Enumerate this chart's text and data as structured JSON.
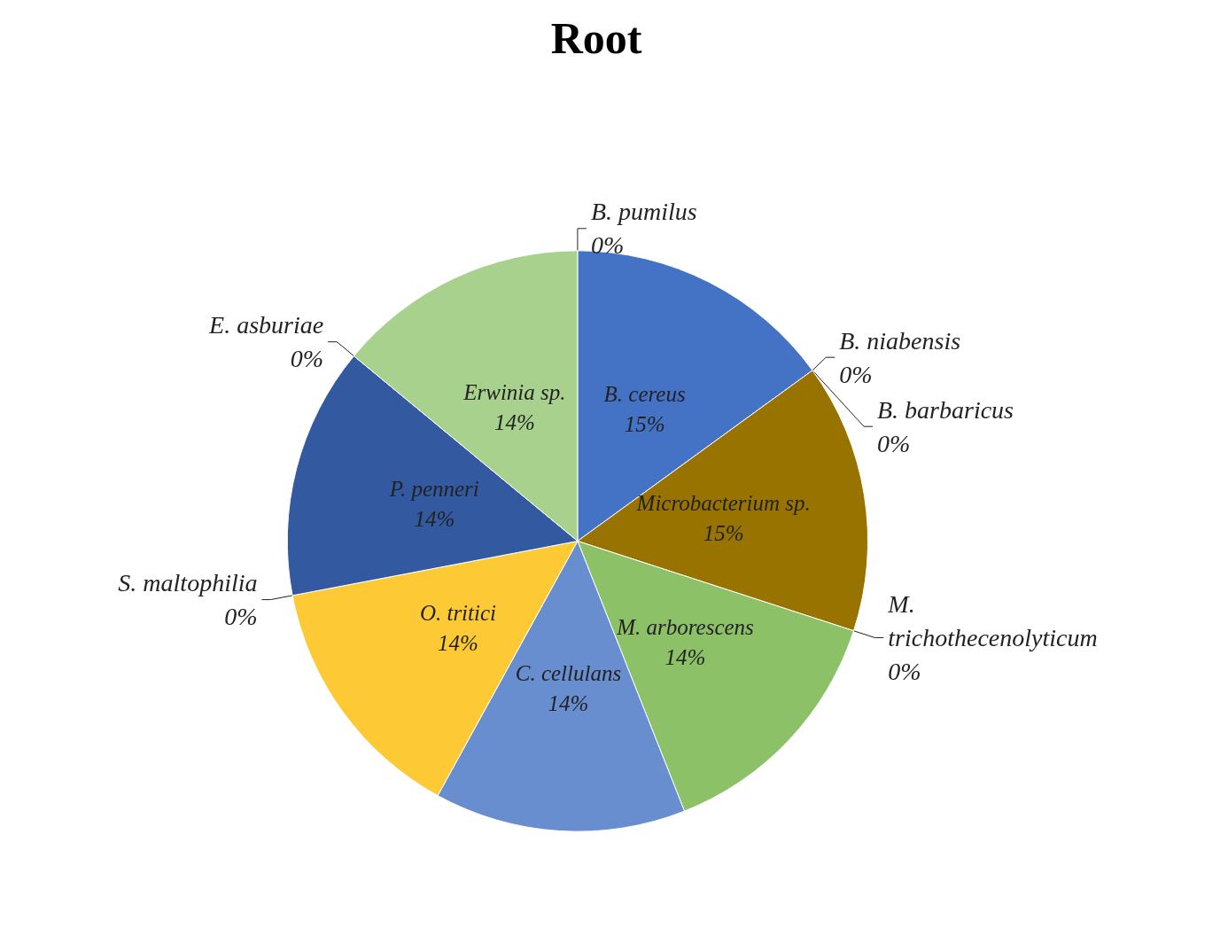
{
  "chart_data": {
    "type": "pie",
    "title": "Root",
    "categories": [
      "B. cereus",
      "B. niabensis",
      "B. barbaricus",
      "Microbacterium sp.",
      "M. trichothecenolyticum",
      "M. arborescens",
      "C. cellulans",
      "O. tritici",
      "S. maltophilia",
      "P. penneri",
      "E. asburiae",
      "Erwinia sp.",
      "B. pumilus"
    ],
    "values": [
      15,
      0,
      0,
      15,
      0,
      14,
      14,
      14,
      0,
      14,
      0,
      14,
      0
    ],
    "value_labels": [
      "15%",
      "0%",
      "0%",
      "15%",
      "0%",
      "14%",
      "14%",
      "14%",
      "0%",
      "14%",
      "0%",
      "14%",
      "0%"
    ],
    "data_labels": true,
    "colors": [
      "#4472c4",
      "#ed7d31",
      "#a5a5a5",
      "#997300",
      "#5b9bd5",
      "#8cc168",
      "#698ed0",
      "#fdca35",
      "#264478",
      "#335aa1",
      "#636363",
      "#a9d18e",
      "#9e480e"
    ]
  }
}
